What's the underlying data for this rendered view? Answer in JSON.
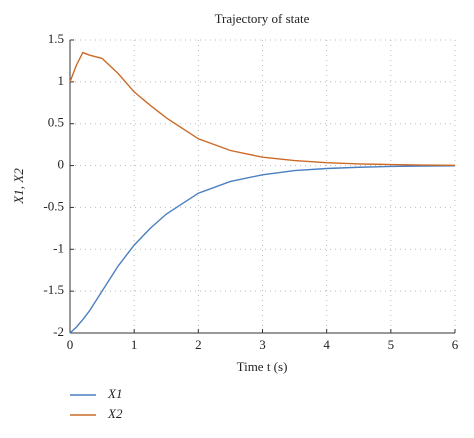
{
  "chart_data": {
    "type": "line",
    "title": "Trajectory of state",
    "x_label": "Time t (s)",
    "y_label": "X1, X2",
    "x": [
      0,
      0.1,
      0.2,
      0.3,
      0.5,
      0.75,
      1,
      1.25,
      1.5,
      2,
      2.5,
      3,
      3.5,
      4,
      4.5,
      5,
      5.5,
      6
    ],
    "series": [
      {
        "name": "X1",
        "color": "#4a7fc1",
        "values": [
          -2,
          -1.93,
          -1.84,
          -1.74,
          -1.5,
          -1.2,
          -0.95,
          -0.75,
          -0.58,
          -0.33,
          -0.19,
          -0.11,
          -0.06,
          -0.035,
          -0.02,
          -0.01,
          -0.005,
          -0.003
        ]
      },
      {
        "name": "X2",
        "color": "#cc6a28",
        "values": [
          1.0,
          1.2,
          1.35,
          1.32,
          1.28,
          1.1,
          0.88,
          0.72,
          0.57,
          0.32,
          0.18,
          0.1,
          0.06,
          0.035,
          0.02,
          0.012,
          0.006,
          0.003
        ]
      }
    ],
    "xlim": [
      0,
      6
    ],
    "xticks": [
      0,
      1,
      2,
      3,
      4,
      5,
      6
    ],
    "ylim": [
      -2,
      1.5
    ],
    "yticks": [
      -2,
      -1.5,
      -1,
      -0.5,
      0,
      0.5,
      1,
      1.5
    ],
    "grid": true,
    "legend": "bottom-left"
  }
}
